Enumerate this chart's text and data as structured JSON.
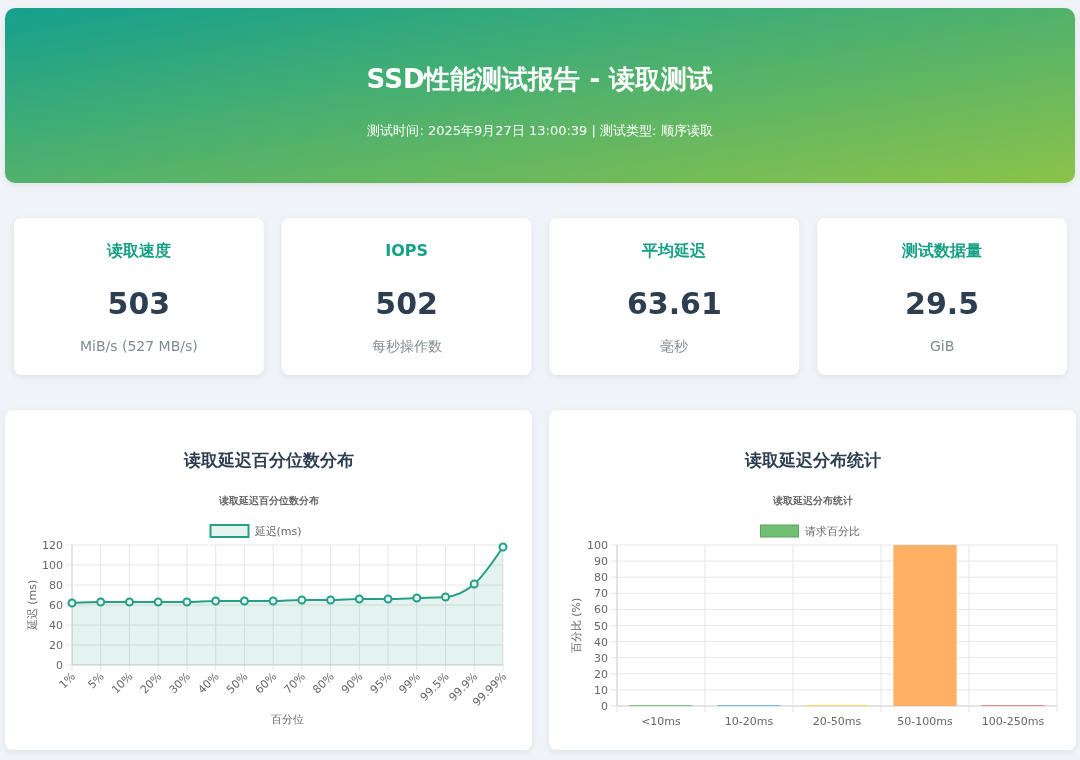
{
  "chart_data": [
    {
      "type": "other",
      "title": "SSD性能测试报告 - 读取测试",
      "subtitle": "测试时间: 2025年9月27日 13:00:39 | 测试类型: 顺序读取",
      "annotations": [
        "读取速度",
        "503",
        "MiB/s (527 MB/s)",
        "IOPS",
        "502",
        "每秒操作数",
        "平均延迟",
        "63.61",
        "毫秒",
        "测试数据量",
        "29.5",
        "GiB"
      ]
    },
    {
      "type": "area",
      "title": "读取延迟百分位数分布",
      "subtitle": "读取延迟百分位数分布",
      "xlabel": "百分位",
      "ylabel": "延迟 (ms)",
      "categories": [
        "1%",
        "5%",
        "10%",
        "20%",
        "30%",
        "40%",
        "50%",
        "60%",
        "70%",
        "80%",
        "90%",
        "95%",
        "99%",
        "99.5%",
        "99.9%",
        "99.99%"
      ],
      "series": [
        {
          "name": "延迟(ms)",
          "color": "#26a085",
          "values": [
            62,
            63,
            63,
            63,
            63,
            64,
            64,
            64,
            65,
            65,
            66,
            66,
            67,
            68,
            81,
            118
          ]
        }
      ],
      "ylim": [
        0,
        120
      ],
      "yticks": [
        0,
        20,
        40,
        60,
        80,
        100,
        120
      ],
      "grid": true,
      "legend": "top",
      "marker": "circle"
    },
    {
      "type": "bar",
      "title": "读取延迟分布统计",
      "subtitle": "读取延迟分布统计",
      "ylabel": "百分比 (%)",
      "categories": [
        "<10ms",
        "10-20ms",
        "20-50ms",
        "50-100ms",
        "100-250ms"
      ],
      "series": [
        {
          "name": "请求百分比",
          "color": "#70bf73",
          "colors": [
            "#70bf73",
            "#64b5f6",
            "#ffd54f",
            "#ffb064",
            "#e57373"
          ],
          "values": [
            0.5,
            0.5,
            0.5,
            100,
            0.5
          ]
        }
      ],
      "ylim": [
        0,
        100
      ],
      "yticks": [
        0,
        10,
        20,
        30,
        40,
        50,
        60,
        70,
        80,
        90,
        100
      ],
      "grid": true,
      "legend": "top"
    }
  ]
}
